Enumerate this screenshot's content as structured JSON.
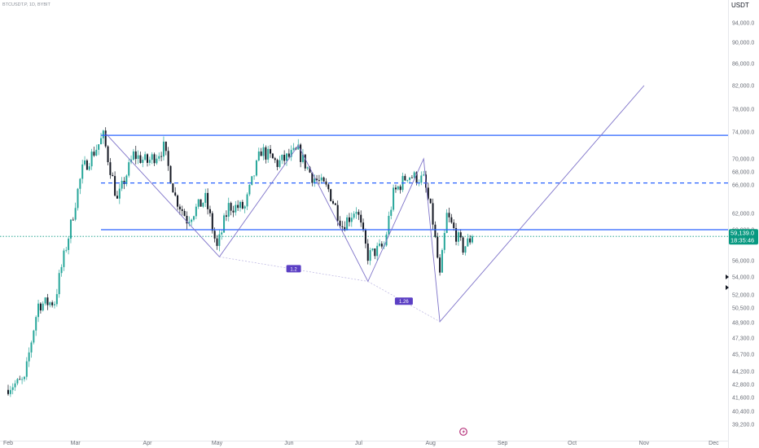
{
  "header": {
    "symbol_title": "BTCUSDT.P, 1D, BYBIT",
    "unit": "USDT"
  },
  "price_tag": {
    "price": "59,139.0",
    "countdown": "18:35:46"
  },
  "colors": {
    "up": "#26a69a",
    "down": "#131722",
    "level_line": "#2962ff",
    "pattern_line": "#7e73c9",
    "badge": "#5b3fc4",
    "price_tag": "#089981",
    "event_marker": "#b5317a"
  },
  "icons": {
    "event_marker": "lightning-icon",
    "scale_arrows": "triangle-right-icon"
  },
  "chart_data": {
    "type": "candlestick",
    "interval": "1D",
    "x_axis": {
      "ticks": [
        "Feb",
        "Mar",
        "Apr",
        "May",
        "Jun",
        "Jul",
        "Aug",
        "Sep",
        "Oct",
        "Nov",
        "Dec"
      ]
    },
    "y_axis": {
      "ticks": [
        "94,000.0",
        "90,000.0",
        "86,000.0",
        "82,000.0",
        "78,000.0",
        "74,000.0",
        "70,000.0",
        "68,000.0",
        "66,000.0",
        "62,000.0",
        "60,000.0",
        "56,000.0",
        "54,000.0",
        "52,000.0",
        "50,500.0",
        "48,900.0",
        "47,300.0",
        "45,700.0",
        "44,200.0",
        "42,800.0",
        "41,600.0",
        "40,400.0",
        "39,200.0"
      ]
    },
    "last_price": 59139,
    "candle_anchors": [
      {
        "date": "2024-02-01",
        "close": 42600
      },
      {
        "date": "2024-02-08",
        "close": 43200
      },
      {
        "date": "2024-02-14",
        "close": 50900
      },
      {
        "date": "2024-02-21",
        "close": 51200
      },
      {
        "date": "2024-02-28",
        "close": 60500
      },
      {
        "date": "2024-03-04",
        "close": 68300
      },
      {
        "date": "2024-03-13",
        "close": 73300
      },
      {
        "date": "2024-03-19",
        "close": 63700
      },
      {
        "date": "2024-03-26",
        "close": 70600
      },
      {
        "date": "2024-04-01",
        "close": 69500
      },
      {
        "date": "2024-04-08",
        "close": 71600
      },
      {
        "date": "2024-04-13",
        "close": 64300
      },
      {
        "date": "2024-04-18",
        "close": 61300
      },
      {
        "date": "2024-04-26",
        "close": 64000
      },
      {
        "date": "2024-05-01",
        "close": 57600
      },
      {
        "date": "2024-05-06",
        "close": 63000
      },
      {
        "date": "2024-05-13",
        "close": 62800
      },
      {
        "date": "2024-05-20",
        "close": 71300
      },
      {
        "date": "2024-05-27",
        "close": 69300
      },
      {
        "date": "2024-06-05",
        "close": 71100
      },
      {
        "date": "2024-06-11",
        "close": 67300
      },
      {
        "date": "2024-06-18",
        "close": 65300
      },
      {
        "date": "2024-06-24",
        "close": 60500
      },
      {
        "date": "2024-06-30",
        "close": 62700
      },
      {
        "date": "2024-07-05",
        "close": 56600
      },
      {
        "date": "2024-07-12",
        "close": 57900
      },
      {
        "date": "2024-07-16",
        "close": 64700
      },
      {
        "date": "2024-07-22",
        "close": 67500
      },
      {
        "date": "2024-07-29",
        "close": 66800
      },
      {
        "date": "2024-08-02",
        "close": 61000
      },
      {
        "date": "2024-08-05",
        "close": 54000
      },
      {
        "date": "2024-08-08",
        "close": 61700
      },
      {
        "date": "2024-08-15",
        "close": 57600
      },
      {
        "date": "2024-08-19",
        "close": 59100
      }
    ],
    "horizontal_levels": [
      {
        "style": "solid",
        "price": 73500,
        "from": "2024-03-12"
      },
      {
        "style": "dashed",
        "price": 66300,
        "from": "2024-03-12"
      },
      {
        "style": "solid",
        "price": 60000,
        "from": "2024-03-12"
      }
    ],
    "pattern": {
      "points": [
        {
          "date": "2024-03-14",
          "price": 73800
        },
        {
          "date": "2024-05-02",
          "price": 56500
        },
        {
          "date": "2024-06-05",
          "price": 72000
        },
        {
          "date": "2024-07-05",
          "price": 53500
        },
        {
          "date": "2024-07-29",
          "price": 70000
        },
        {
          "date": "2024-08-05",
          "price": 49000
        },
        {
          "date": "2024-11-01",
          "price": 82000
        }
      ],
      "ratio_labels": [
        "1.2",
        "1.26"
      ]
    }
  }
}
